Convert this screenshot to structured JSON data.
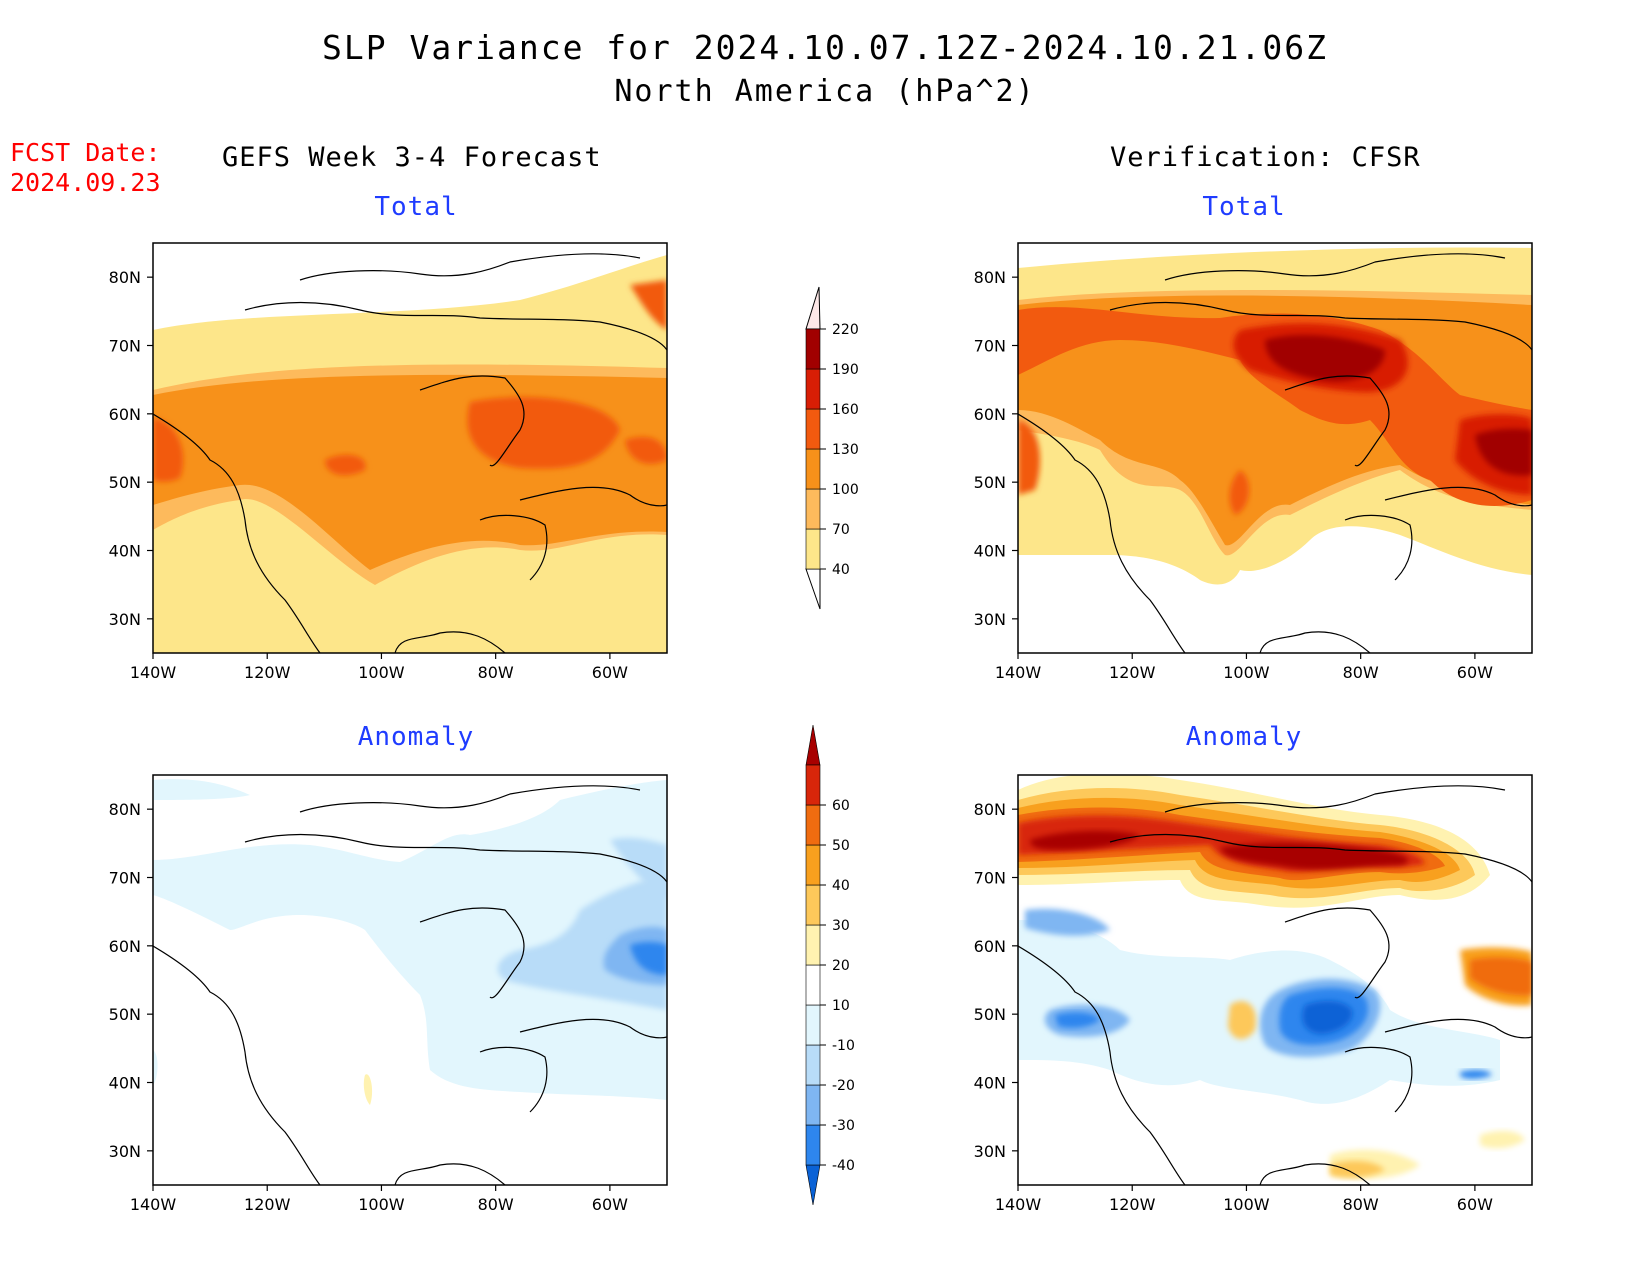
{
  "header": {
    "title": "SLP Variance for 2024.10.07.12Z-2024.10.21.06Z",
    "subtitle": "North America (hPa^2)",
    "fcst_label": "FCST Date:",
    "fcst_date": "2024.09.23"
  },
  "columns": {
    "left": "GEFS Week 3-4 Forecast",
    "right": "Verification: CFSR"
  },
  "panels": {
    "total_label": "Total",
    "anomaly_label": "Anomaly"
  },
  "axes": {
    "lat_ticks": [
      "80N",
      "70N",
      "60N",
      "50N",
      "40N",
      "30N"
    ],
    "lon_ticks": [
      "140W",
      "120W",
      "100W",
      "80W",
      "60W"
    ],
    "lat_range": [
      25,
      85
    ],
    "lon_range": [
      -140,
      -50
    ]
  },
  "total_scale": {
    "levels": [
      "40",
      "70",
      "100",
      "130",
      "160",
      "190",
      "220"
    ],
    "colors": [
      "#fde68a",
      "#fdba5c",
      "#f7911a",
      "#f25a0f",
      "#d81e05",
      "#a10000",
      "#f4a0a0",
      "#fde8e8"
    ]
  },
  "anomaly_scale": {
    "levels": [
      "-40",
      "-30",
      "-20",
      "-10",
      "10",
      "20",
      "30",
      "40",
      "50",
      "60"
    ],
    "colors": [
      "#0a62d6",
      "#2e86ee",
      "#7fb6f2",
      "#b8dcf8",
      "#e2f6fd",
      "#ffffff",
      "#fff2b0",
      "#fdc85a",
      "#f8a01e",
      "#f06c10",
      "#d8260a",
      "#a80000"
    ]
  },
  "colors": {
    "title_text": "#000000",
    "fcst_text": "#ff0000",
    "panel_label": "#1f3cff"
  }
}
